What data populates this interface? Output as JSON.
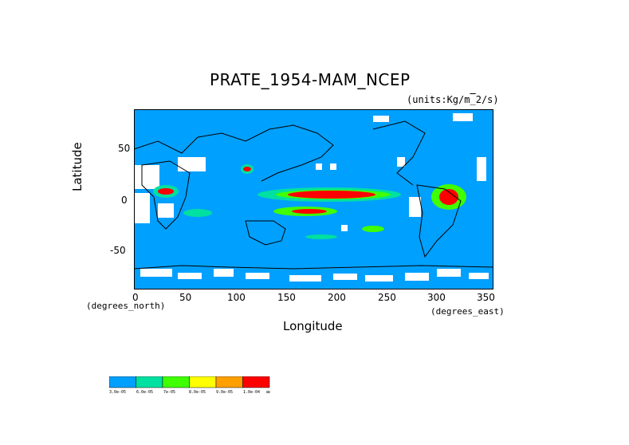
{
  "title": "PRATE_1954-MAM_NCEP",
  "units": "(units:Kg/m^2/s)",
  "xlabel": "Longitude",
  "ylabel": "Latitude",
  "x_unit_left": "(degrees_north)",
  "x_unit_right": "(degrees_east)",
  "x_ticks": [
    "0",
    "50",
    "100",
    "150",
    "200",
    "250",
    "300",
    "350"
  ],
  "y_ticks": [
    "50",
    "0",
    "-50"
  ],
  "legend": {
    "colors": [
      "#00a0ff",
      "#00e0a0",
      "#40ff00",
      "#ffff00",
      "#ffa000",
      "#ff0000"
    ],
    "labels": [
      "3.0e-05",
      "6.0e-05",
      "7e-05",
      "8.0e-05",
      "9.0e-05",
      "1.0e-04"
    ],
    "end_symbol": "∞"
  },
  "map_colors": {
    "ocean_base": "#00a0ff",
    "land_dry": "#ffffff",
    "coast": "#000000"
  }
}
